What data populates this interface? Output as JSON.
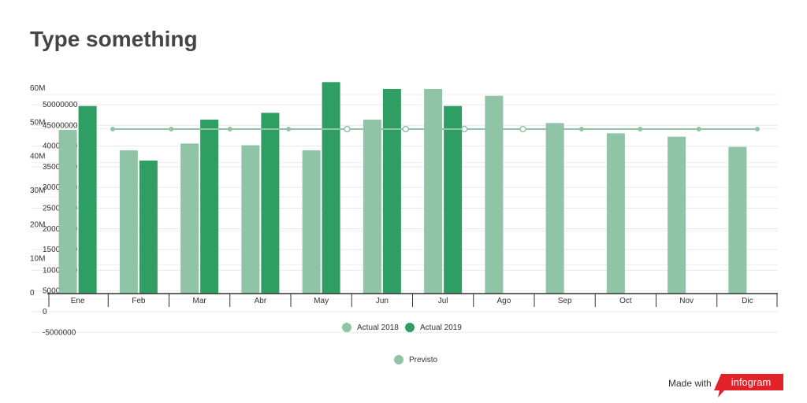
{
  "title": "Type something",
  "footer": {
    "made_with": "Made with",
    "brand": "infogram"
  },
  "colors": {
    "actual2018": "#8fc4a6",
    "actual2019": "#2f9e62",
    "previsto": "#8fc4a6"
  },
  "chart_data": {
    "type": "bar",
    "categories": [
      "Ene",
      "Feb",
      "Mar",
      "Abr",
      "May",
      "Jun",
      "Jul",
      "Ago",
      "Sep",
      "Oct",
      "Nov",
      "Dic"
    ],
    "series": [
      {
        "name": "Actual 2018",
        "type": "bar",
        "values": [
          48000000,
          42000000,
          44000000,
          43500000,
          42000000,
          51000000,
          60000000,
          58000000,
          50000000,
          47000000,
          46000000,
          43000000
        ]
      },
      {
        "name": "Actual 2019",
        "type": "bar",
        "values": [
          55000000,
          39000000,
          51000000,
          53000000,
          62000000,
          60000000,
          55000000,
          null,
          null,
          null,
          null,
          null
        ]
      },
      {
        "name": "Previsto",
        "type": "line",
        "values": [
          45000000,
          45000000,
          45000000,
          45000000,
          45000000,
          45000000,
          45000000,
          45000000,
          45000000,
          45000000,
          45000000,
          45000000
        ]
      }
    ],
    "left_axis_ticks": [
      "60M",
      "50M",
      "40M",
      "30M",
      "20M",
      "10M",
      "0"
    ],
    "right_axis_ticks": [
      "50000000",
      "45000000",
      "40000000",
      "35000000",
      "30000000",
      "25000000",
      "20000000",
      "15000000",
      "10000000",
      "5000000",
      "0",
      "-5000000"
    ],
    "ylim": [
      0,
      60000000
    ],
    "legend": [
      "Actual 2018",
      "Actual 2019"
    ],
    "legend2": [
      "Previsto"
    ],
    "legend_position": "bottom",
    "grid": true
  }
}
